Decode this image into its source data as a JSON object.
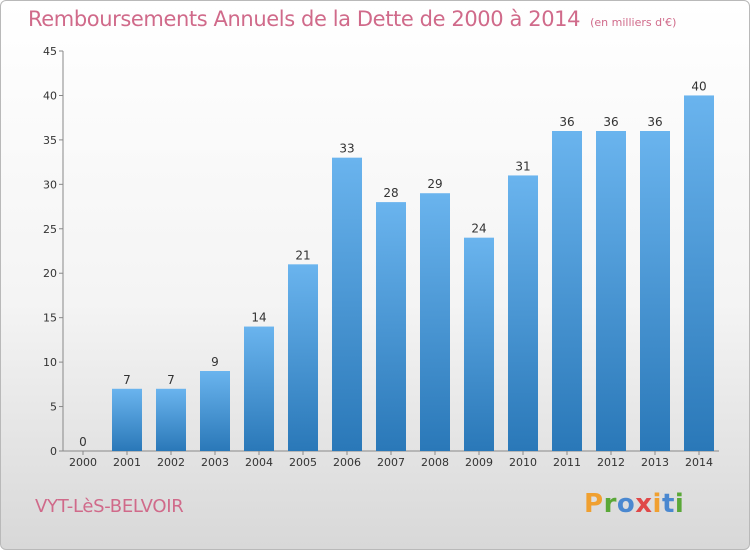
{
  "header": {
    "title": "Remboursements Annuels de la Dette de 2000 à 2014",
    "unit": "(en milliers d'€)"
  },
  "footer": {
    "location": "VYT-LèS-BELVOIR",
    "logo": "Proxiti"
  },
  "colors": {
    "bar_top": "#6ab4ee",
    "bar_bottom": "#2a78b8",
    "title": "#d06a8a"
  },
  "chart_data": {
    "type": "bar",
    "title": "Remboursements Annuels de la Dette de 2000 à 2014",
    "subtitle": "(en milliers d'€)",
    "xlabel": "",
    "ylabel": "",
    "categories": [
      "2000",
      "2001",
      "2002",
      "2003",
      "2004",
      "2005",
      "2006",
      "2007",
      "2008",
      "2009",
      "2010",
      "2011",
      "2012",
      "2013",
      "2014"
    ],
    "values": [
      0,
      7,
      7,
      9,
      14,
      21,
      33,
      28,
      29,
      24,
      31,
      36,
      36,
      36,
      40
    ],
    "ylim": [
      0,
      45
    ],
    "yticks": [
      0,
      5,
      10,
      15,
      20,
      25,
      30,
      35,
      40,
      45
    ],
    "grid": false,
    "data_labels": true
  }
}
